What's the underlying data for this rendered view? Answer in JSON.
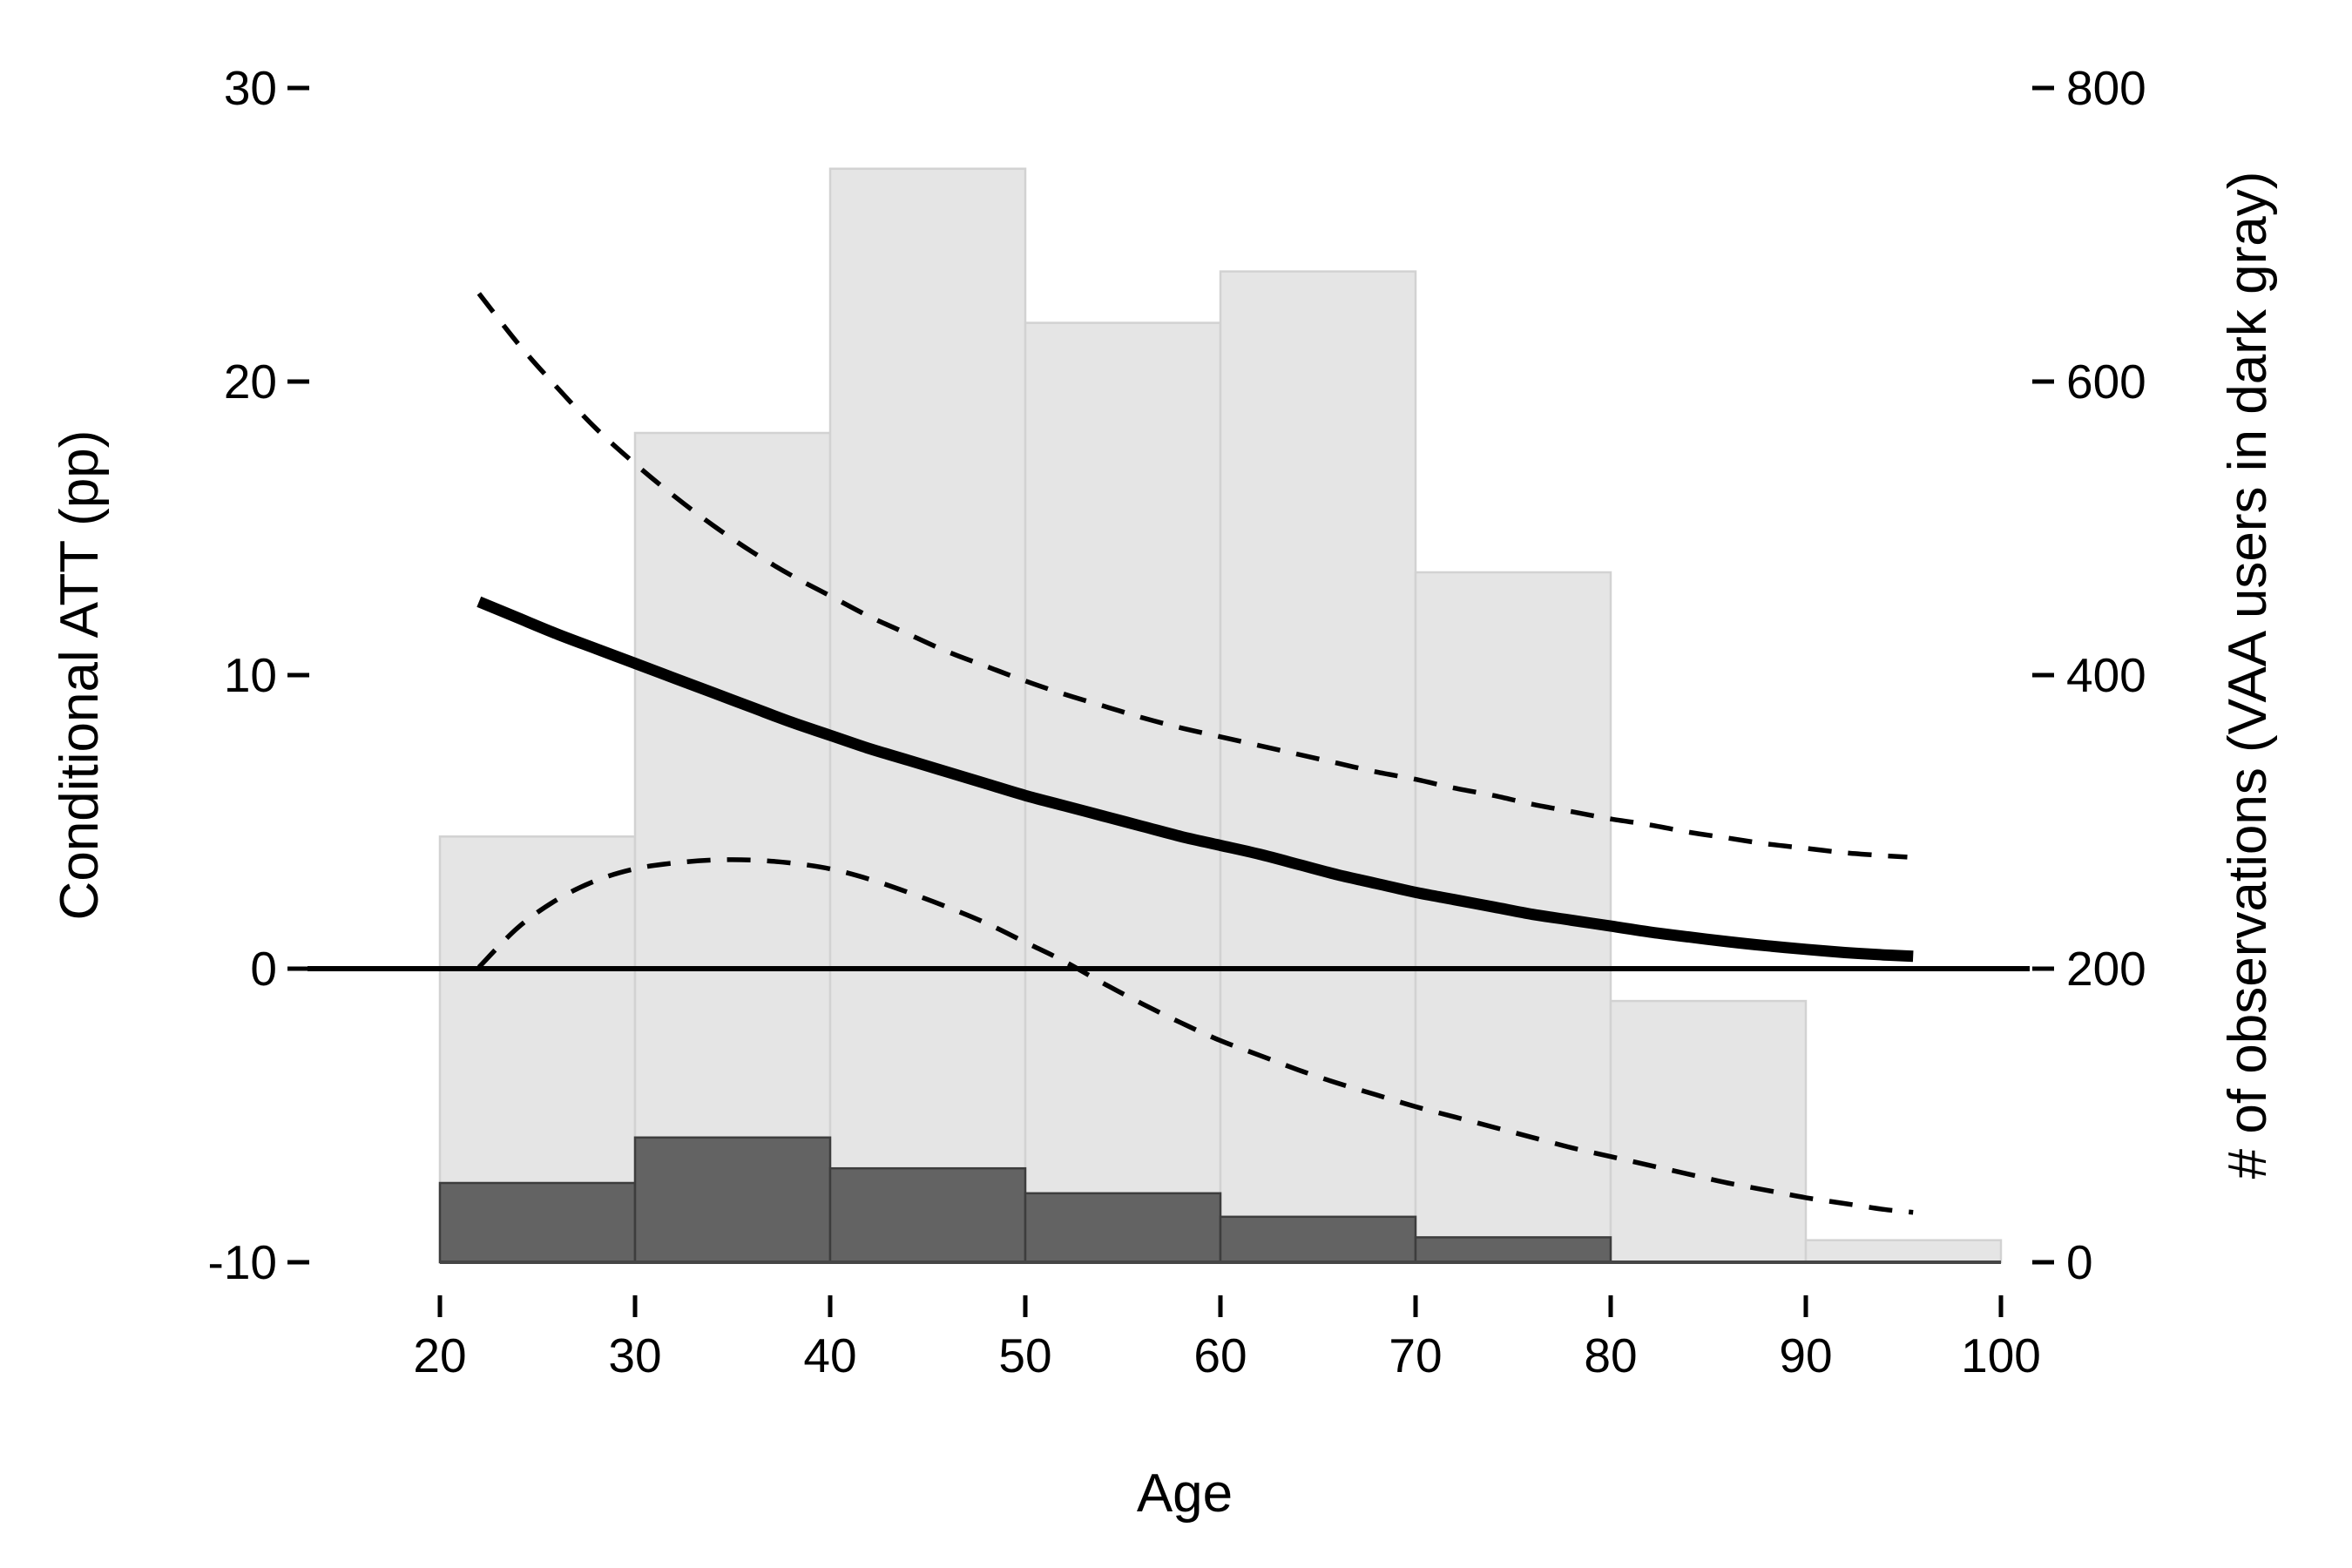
{
  "figure": {
    "background": "#ffffff",
    "x_axis": {
      "label": "Age",
      "ticks": [
        20,
        30,
        40,
        50,
        60,
        70,
        80,
        90,
        100
      ]
    },
    "y_left": {
      "label": "Conditional ATT (pp)",
      "ticks": [
        -10,
        0,
        10,
        20,
        30
      ]
    },
    "y_right": {
      "label": "# of observations (VAA users in dark gray)",
      "ticks": [
        0,
        200,
        400,
        600,
        800
      ]
    }
  },
  "chart_data": {
    "type": "combo_histogram_line",
    "title": "",
    "xlabel": "Age",
    "ylabel_left": "Conditional ATT (pp)",
    "ylabel_right": "# of observations (VAA users in dark gray)",
    "xlim": [
      13.2,
      101.5
    ],
    "ylim_left": [
      -11.5,
      31
    ],
    "ylim_right": [
      -30,
      830
    ],
    "x_ticks": [
      20,
      30,
      40,
      50,
      60,
      70,
      80,
      90,
      100
    ],
    "y_left_ticks": [
      -10,
      0,
      10,
      20,
      30
    ],
    "y_right_ticks": [
      0,
      200,
      400,
      600,
      800
    ],
    "axis_mapping_note": "left -10 pp aligns with right 0 obs; 10 pp = 200 obs",
    "grid": "off",
    "legend": "none",
    "histogram_all": {
      "name": "all respondents (light gray)",
      "axis": "right",
      "fill": "#e5e5e5",
      "stroke": "#d2d2d2",
      "bin_edges": [
        20,
        30,
        40,
        50,
        60,
        70,
        80,
        90,
        100
      ],
      "counts": [
        290,
        565,
        745,
        640,
        675,
        470,
        178,
        15
      ]
    },
    "histogram_vaa": {
      "name": "VAA users (dark gray)",
      "axis": "right",
      "fill": "#636363",
      "stroke": "#3d3d3d",
      "bin_edges": [
        20,
        30,
        40,
        50,
        60,
        70,
        80,
        90,
        100
      ],
      "counts": [
        54,
        85,
        64,
        47,
        31,
        17,
        0,
        0
      ]
    },
    "zero_line": {
      "axis": "left",
      "y": 0,
      "color": "#000000"
    },
    "att_line": {
      "name": "conditional ATT estimate",
      "axis": "left",
      "style": "solid thick black",
      "points": [
        [
          22,
          12.5
        ],
        [
          24,
          11.95
        ],
        [
          26,
          11.4
        ],
        [
          28,
          10.9
        ],
        [
          30,
          10.4
        ],
        [
          32,
          9.9
        ],
        [
          34,
          9.4
        ],
        [
          36,
          8.9
        ],
        [
          38,
          8.4
        ],
        [
          40,
          7.95
        ],
        [
          42,
          7.5
        ],
        [
          44,
          7.1
        ],
        [
          46,
          6.7
        ],
        [
          48,
          6.3
        ],
        [
          50,
          5.9
        ],
        [
          52,
          5.55
        ],
        [
          54,
          5.2
        ],
        [
          56,
          4.85
        ],
        [
          58,
          4.5
        ],
        [
          60,
          4.2
        ],
        [
          62,
          3.9
        ],
        [
          64,
          3.55
        ],
        [
          66,
          3.2
        ],
        [
          68,
          2.9
        ],
        [
          70,
          2.6
        ],
        [
          72,
          2.35
        ],
        [
          74,
          2.1
        ],
        [
          76,
          1.85
        ],
        [
          78,
          1.65
        ],
        [
          80,
          1.45
        ],
        [
          82,
          1.25
        ],
        [
          84,
          1.08
        ],
        [
          86,
          0.92
        ],
        [
          88,
          0.78
        ],
        [
          90,
          0.66
        ],
        [
          92,
          0.55
        ],
        [
          94,
          0.47
        ],
        [
          95.5,
          0.42
        ]
      ]
    },
    "ci_upper": {
      "name": "upper confidence bound",
      "axis": "left",
      "style": "dashed black",
      "points": [
        [
          22,
          23.0
        ],
        [
          24,
          21.3
        ],
        [
          26,
          19.8
        ],
        [
          28,
          18.4
        ],
        [
          30,
          17.2
        ],
        [
          32,
          16.1
        ],
        [
          34,
          15.1
        ],
        [
          36,
          14.2
        ],
        [
          38,
          13.4
        ],
        [
          40,
          12.7
        ],
        [
          42,
          12.0
        ],
        [
          44,
          11.4
        ],
        [
          46,
          10.8
        ],
        [
          48,
          10.3
        ],
        [
          50,
          9.8
        ],
        [
          52,
          9.35
        ],
        [
          54,
          8.95
        ],
        [
          56,
          8.55
        ],
        [
          58,
          8.2
        ],
        [
          60,
          7.9
        ],
        [
          62,
          7.6
        ],
        [
          64,
          7.3
        ],
        [
          66,
          7.0
        ],
        [
          68,
          6.7
        ],
        [
          70,
          6.45
        ],
        [
          72,
          6.15
        ],
        [
          74,
          5.9
        ],
        [
          76,
          5.6
        ],
        [
          78,
          5.35
        ],
        [
          80,
          5.1
        ],
        [
          82,
          4.9
        ],
        [
          84,
          4.65
        ],
        [
          86,
          4.45
        ],
        [
          88,
          4.25
        ],
        [
          90,
          4.1
        ],
        [
          92,
          3.95
        ],
        [
          94,
          3.85
        ],
        [
          95.2,
          3.8
        ]
      ]
    },
    "ci_lower": {
      "name": "lower confidence bound",
      "axis": "left",
      "style": "dashed black",
      "points": [
        [
          22,
          0.05
        ],
        [
          24,
          1.4
        ],
        [
          26,
          2.35
        ],
        [
          28,
          3.0
        ],
        [
          30,
          3.4
        ],
        [
          32,
          3.6
        ],
        [
          34,
          3.7
        ],
        [
          36,
          3.7
        ],
        [
          38,
          3.6
        ],
        [
          40,
          3.4
        ],
        [
          42,
          3.05
        ],
        [
          44,
          2.6
        ],
        [
          46,
          2.1
        ],
        [
          48,
          1.55
        ],
        [
          50,
          0.9
        ],
        [
          52,
          0.25
        ],
        [
          54,
          -0.5
        ],
        [
          56,
          -1.2
        ],
        [
          58,
          -1.85
        ],
        [
          60,
          -2.45
        ],
        [
          62,
          -2.95
        ],
        [
          64,
          -3.45
        ],
        [
          66,
          -3.9
        ],
        [
          68,
          -4.3
        ],
        [
          70,
          -4.7
        ],
        [
          72,
          -5.05
        ],
        [
          74,
          -5.4
        ],
        [
          76,
          -5.75
        ],
        [
          78,
          -6.1
        ],
        [
          80,
          -6.4
        ],
        [
          82,
          -6.7
        ],
        [
          84,
          -7.0
        ],
        [
          86,
          -7.3
        ],
        [
          88,
          -7.55
        ],
        [
          90,
          -7.8
        ],
        [
          92,
          -8.0
        ],
        [
          94,
          -8.2
        ],
        [
          95.5,
          -8.3
        ]
      ]
    }
  }
}
